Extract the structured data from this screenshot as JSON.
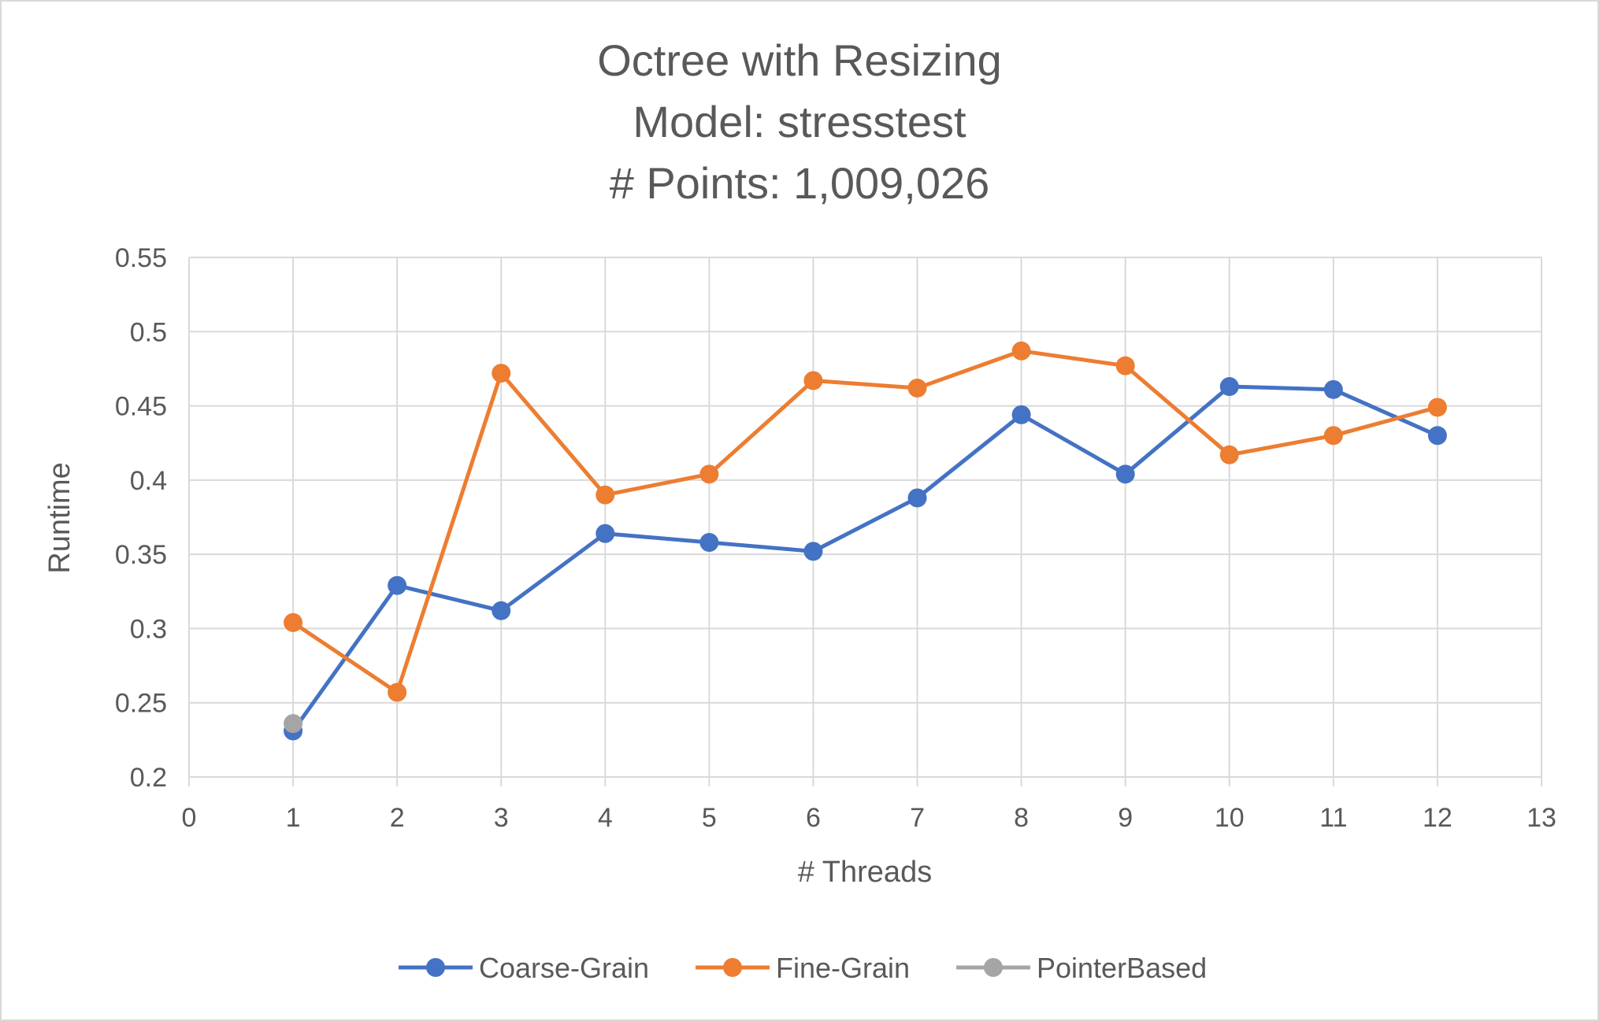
{
  "chart_data": {
    "type": "line",
    "title": [
      "Octree with Resizing",
      "Model: stresstest",
      "# Points: 1,009,026"
    ],
    "xlabel": "# Threads",
    "ylabel": "Runtime",
    "xlim": [
      0,
      13
    ],
    "ylim": [
      0.2,
      0.55
    ],
    "xticks": [
      0,
      1,
      2,
      3,
      4,
      5,
      6,
      7,
      8,
      9,
      10,
      11,
      12,
      13
    ],
    "yticks": [
      0.2,
      0.25,
      0.3,
      0.35,
      0.4,
      0.45,
      0.5,
      0.55
    ],
    "xtick_labels": [
      "0",
      "1",
      "2",
      "3",
      "4",
      "5",
      "6",
      "7",
      "8",
      "9",
      "10",
      "11",
      "12",
      "13"
    ],
    "ytick_labels": [
      "0.2",
      "0.25",
      "0.3",
      "0.35",
      "0.4",
      "0.45",
      "0.5",
      "0.55"
    ],
    "grid": true,
    "legend_position": "bottom",
    "series": [
      {
        "name": "Coarse-Grain",
        "color": "#4472C4",
        "x": [
          1,
          2,
          3,
          4,
          5,
          6,
          7,
          8,
          9,
          10,
          11,
          12
        ],
        "y": [
          0.231,
          0.329,
          0.312,
          0.364,
          0.358,
          0.352,
          0.388,
          0.444,
          0.404,
          0.463,
          0.461,
          0.43
        ]
      },
      {
        "name": "Fine-Grain",
        "color": "#ED7D31",
        "x": [
          1,
          2,
          3,
          4,
          5,
          6,
          7,
          8,
          9,
          10,
          11,
          12
        ],
        "y": [
          0.304,
          0.257,
          0.472,
          0.39,
          0.404,
          0.467,
          0.462,
          0.487,
          0.477,
          0.417,
          0.43,
          0.449
        ]
      },
      {
        "name": "PointerBased",
        "color": "#A5A5A5",
        "x": [
          1
        ],
        "y": [
          0.236
        ]
      }
    ]
  },
  "colors": {
    "gridline": "#D9D9D9",
    "text": "#595959",
    "border": "#D9D9D9"
  }
}
